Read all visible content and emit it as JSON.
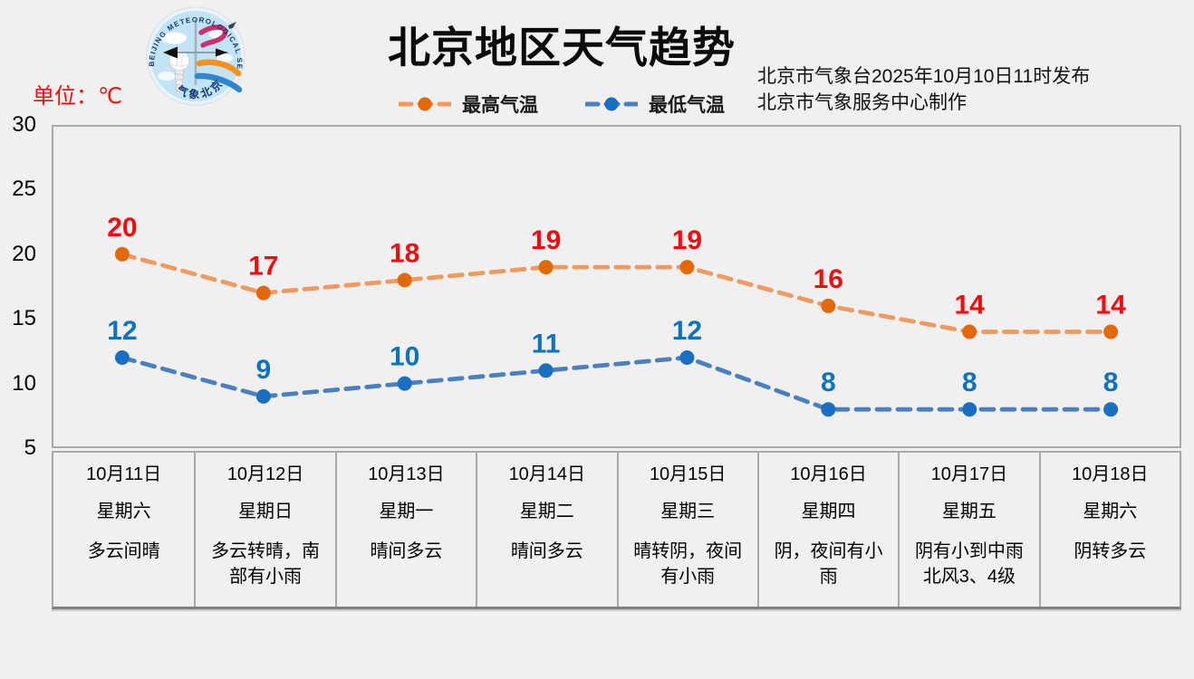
{
  "header": {
    "unit_label": "单位：℃",
    "title": "北京地区天气趋势",
    "issued_line1": "北京市气象台2025年10月10日11时发布",
    "issued_line2": "北京市气象服务中心制作",
    "logo_text_top": "BEIJING METEOROLOGICAL SERVICE",
    "logo_text_bottom": "气象北京"
  },
  "legend": {
    "items": [
      {
        "label": "最高气温",
        "line_color": "#f09a5f",
        "marker_color": "#e2690b"
      },
      {
        "label": "最低气温",
        "line_color": "#4a80c0",
        "marker_color": "#1a6fc0"
      }
    ]
  },
  "chart_data": {
    "type": "line",
    "title": "北京地区天气趋势",
    "unit": "℃",
    "x": [
      "10月11日",
      "10月12日",
      "10月13日",
      "10月14日",
      "10月15日",
      "10月16日",
      "10月17日",
      "10月18日"
    ],
    "series": [
      {
        "name": "最高气温",
        "values": [
          20,
          17,
          18,
          19,
          19,
          16,
          14,
          14
        ],
        "line_color": "#f09a5f",
        "marker_color": "#e2690b",
        "label_color": "#f20c10"
      },
      {
        "name": "最低气温",
        "values": [
          12,
          9,
          10,
          11,
          12,
          8,
          8,
          8
        ],
        "line_color": "#4a80c0",
        "marker_color": "#1a6fc0",
        "label_color": "#0e72bd"
      }
    ],
    "ylim": [
      5,
      30
    ],
    "yticks": [
      30,
      25,
      20,
      15,
      10,
      5
    ],
    "grid": false,
    "line_style": "dashed",
    "legend_position": "top"
  },
  "table": {
    "days": [
      {
        "date": "10月11日",
        "weekday": "星期六",
        "weather": "多云间晴"
      },
      {
        "date": "10月12日",
        "weekday": "星期日",
        "weather": "多云转晴，南\n部有小雨"
      },
      {
        "date": "10月13日",
        "weekday": "星期一",
        "weather": "晴间多云"
      },
      {
        "date": "10月14日",
        "weekday": "星期二",
        "weather": "晴间多云"
      },
      {
        "date": "10月15日",
        "weekday": "星期三",
        "weather": "晴转阴，夜间\n有小雨"
      },
      {
        "date": "10月16日",
        "weekday": "星期四",
        "weather": "阴，夜间有小\n雨"
      },
      {
        "date": "10月17日",
        "weekday": "星期五",
        "weather": "阴有小到中雨\n北风3、4级"
      },
      {
        "date": "10月18日",
        "weekday": "星期六",
        "weather": "阴转多云"
      }
    ]
  },
  "colors": {
    "background": "#f0f0f0",
    "plot_border": "#a9a9a9",
    "table_bottom_border": "#7f7f7f",
    "high_label": "#f20c10",
    "low_label": "#0e72bd"
  }
}
